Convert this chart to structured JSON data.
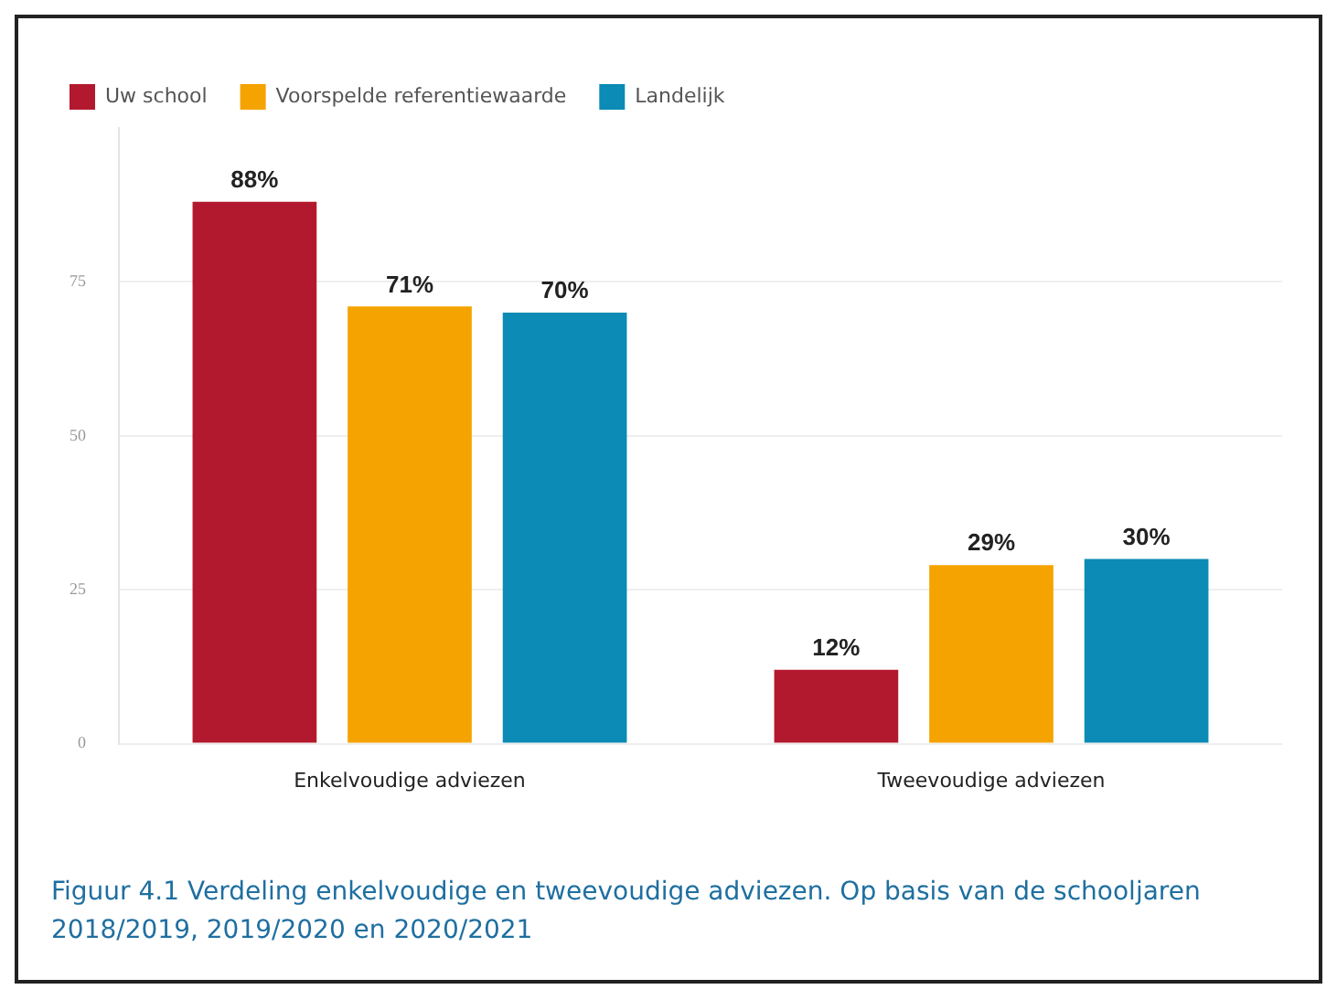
{
  "chart_data": {
    "type": "bar",
    "categories": [
      "Enkelvoudige adviezen",
      "Tweevoudige adviezen"
    ],
    "series": [
      {
        "name": "Uw school",
        "color": "#b3192e",
        "values": [
          88,
          12
        ],
        "value_labels": [
          "88%",
          "12%"
        ]
      },
      {
        "name": "Voorspelde referentiewaarde",
        "color": "#f5a300",
        "values": [
          71,
          29
        ],
        "value_labels": [
          "71%",
          "29%"
        ]
      },
      {
        "name": "Landelijk",
        "color": "#0b8bb5",
        "values": [
          70,
          30
        ],
        "value_labels": [
          "70%",
          "30%"
        ]
      }
    ],
    "ylim": [
      0,
      100
    ],
    "yticks": [
      0,
      25,
      50,
      75
    ],
    "grid": "y",
    "legend": "top left",
    "annotations": [
      "Figuur 4.1 Verdeling enkelvoudige en tweevoudige adviezen. Op basis van de schooljaren 2018/2019, 2019/2020 en 2020/2021"
    ]
  }
}
